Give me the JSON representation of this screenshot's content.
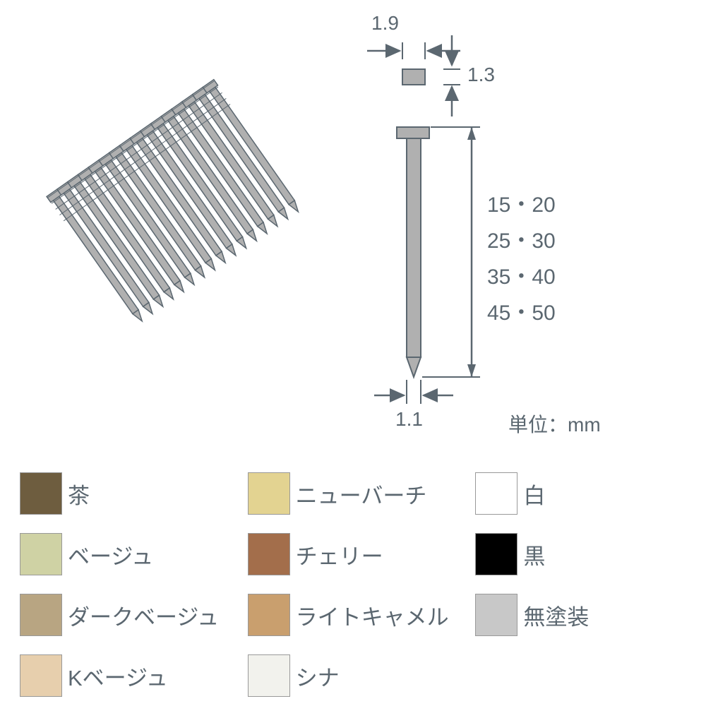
{
  "dimensions": {
    "head_width": "1.9",
    "head_height": "1.3",
    "shank_width": "1.1",
    "lengths_lines": [
      "15・20",
      "25・30",
      "35・40",
      "45・50"
    ],
    "unit": "単位：mm"
  },
  "diagram_style": {
    "nail_fill": "#b0b0b0",
    "nail_stroke": "#5b6770",
    "arrow_stroke": "#5b6770",
    "arrow_stroke_width": 2,
    "text_color": "#5b6770"
  },
  "nail_strip": {
    "count": 16,
    "fill": "#b0b0b0",
    "stroke": "#5b6770",
    "rotation_deg": -35
  },
  "colors": [
    {
      "hex": "#6e5d3f",
      "label": "茶"
    },
    {
      "hex": "#e3d391",
      "label": "ニューバーチ"
    },
    {
      "hex": "#ffffff",
      "label": "白"
    },
    {
      "hex": "#cfd2a4",
      "label": "ベージュ"
    },
    {
      "hex": "#a36e4b",
      "label": "チェリー"
    },
    {
      "hex": "#000000",
      "label": "黒"
    },
    {
      "hex": "#b8a582",
      "label": "ダークベージュ"
    },
    {
      "hex": "#c99f6e",
      "label": "ライトキャメル"
    },
    {
      "hex": "#c8c8c8",
      "label": "無塗装"
    },
    {
      "hex": "#e7cfad",
      "label": "Kベージュ"
    },
    {
      "hex": "#f2f2ed",
      "label": "シナ"
    }
  ]
}
